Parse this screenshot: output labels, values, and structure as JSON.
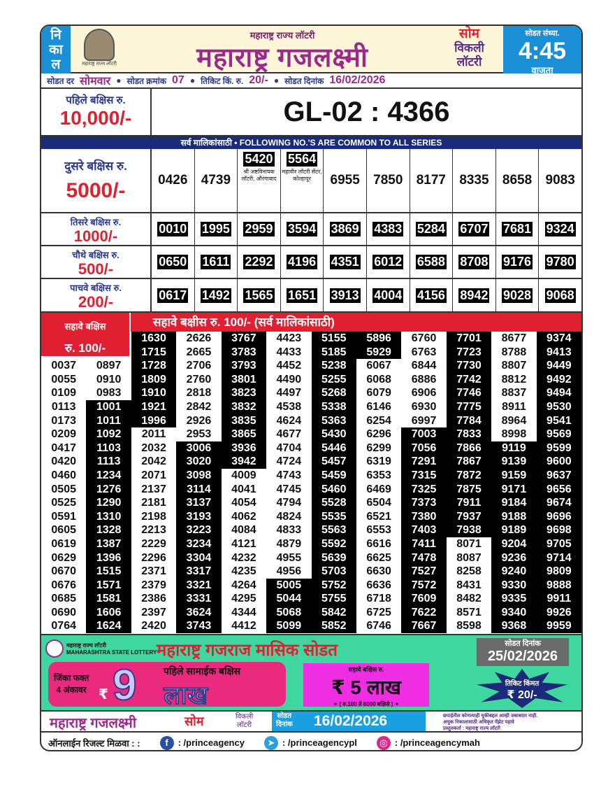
{
  "header": {
    "nikal": [
      "नि",
      "का",
      "ल"
    ],
    "logo_caption": "महाराष्ट्र राज्य लॉटरी",
    "subtitle": "महाराष्ट्र राज्य लॉटरी",
    "title": "महाराष्ट्र गजलक्ष्मी",
    "day_tag": "सोम",
    "weekly_line1": "विकली",
    "weekly_line2": "लॉटरी",
    "draw_time_label": "सोडत संध्या.",
    "draw_time": "4:45",
    "draw_time_suffix": "वाजता"
  },
  "info": {
    "day_label": "सोडत दर",
    "day": "सोमवार",
    "draw_no_label": "सोडत क्रमांक",
    "draw_no": "07",
    "price_label": "तिकिट किं. रु.",
    "price": "20/-",
    "date_label": "सोडत दिनांक",
    "date": "16/02/2026"
  },
  "first_prize": {
    "label": "पहिले बक्षिस रु.",
    "amount": "10,000/-",
    "number": "GL-02 : 4366"
  },
  "common_banner": "सर्व मालिकांसाठी  •  FOLLOWING NO.'S ARE COMMON TO ALL SERIES",
  "second_prize": {
    "label": "दुसरे बक्षिस रु.",
    "amount": "5000/-",
    "numbers": [
      {
        "n": "0426"
      },
      {
        "n": "4739"
      },
      {
        "n": "5420",
        "agent": "श्री अष्टविनायक लॉटरी, औरंगाबाद"
      },
      {
        "n": "5564",
        "agent": "महावीर लॉटरी सेंटर, कोल्हापूर"
      },
      {
        "n": "6955"
      },
      {
        "n": "7850"
      },
      {
        "n": "8177"
      },
      {
        "n": "8335"
      },
      {
        "n": "8658"
      },
      {
        "n": "9083"
      }
    ]
  },
  "third_prize": {
    "label": "तिसरे बक्षिस रु.",
    "amount": "1000/-",
    "numbers": [
      "0010",
      "1995",
      "2959",
      "3594",
      "3869",
      "4383",
      "5284",
      "6707",
      "7681",
      "9324"
    ]
  },
  "fourth_prize": {
    "label": "चौथे बक्षिस रु.",
    "amount": "500/-",
    "numbers": [
      "0650",
      "1611",
      "2292",
      "4196",
      "4351",
      "6012",
      "6588",
      "8708",
      "9176",
      "9780"
    ]
  },
  "fifth_prize": {
    "label": "पाचवे बक्षिस रु.",
    "amount": "200/-",
    "numbers": [
      "0617",
      "1492",
      "1565",
      "1651",
      "3913",
      "4004",
      "4156",
      "8942",
      "9028",
      "9068"
    ]
  },
  "sixth_prize": {
    "label_line1": "सहावे बक्षिस",
    "label_line2": "रु. 100/-",
    "banner": "सहावे बक्षीस रु. 100/-   (सर्व मालिकांसाठी)",
    "columns": [
      [
        "0037",
        "0055",
        "0109",
        "0113",
        "0173",
        "0209",
        "0417",
        "0420",
        "0460",
        "0505",
        "0525",
        "0591",
        "0605",
        "0619",
        "0629",
        "0670",
        "0676",
        "0685",
        "0690",
        "0764"
      ],
      [
        "0897",
        "0910",
        "0983",
        "1001",
        "1011",
        "1092",
        "1103",
        "1113",
        "1234",
        "1276",
        "1290",
        "1310",
        "1328",
        "1387",
        "1396",
        "1515",
        "1571",
        "1581",
        "1606",
        "1624"
      ],
      [
        "1630",
        "1715",
        "1728",
        "1809",
        "1910",
        "1921",
        "1996",
        "2011",
        "2032",
        "2042",
        "2071",
        "2137",
        "2181",
        "2198",
        "2213",
        "2229",
        "2296",
        "2371",
        "2379",
        "2386",
        "2397",
        "2420"
      ],
      [
        "2626",
        "2665",
        "2706",
        "2760",
        "2818",
        "2842",
        "2926",
        "2953",
        "3006",
        "3020",
        "3098",
        "3114",
        "3137",
        "3193",
        "3223",
        "3234",
        "3304",
        "3317",
        "3321",
        "3331",
        "3624",
        "3743"
      ],
      [
        "3767",
        "3783",
        "3793",
        "3801",
        "3823",
        "3832",
        "3835",
        "3865",
        "3936",
        "3942",
        "4009",
        "4041",
        "4054",
        "4062",
        "4084",
        "4121",
        "4232",
        "4235",
        "4264",
        "4295",
        "4344",
        "4412"
      ],
      [
        "4423",
        "4433",
        "4452",
        "4490",
        "4497",
        "4538",
        "4624",
        "4677",
        "4704",
        "4724",
        "4743",
        "4745",
        "4794",
        "4824",
        "4833",
        "4879",
        "4955",
        "4956",
        "5005",
        "5044",
        "5068",
        "5099"
      ],
      [
        "5155",
        "5185",
        "5238",
        "5255",
        "5268",
        "5338",
        "5363",
        "5430",
        "5446",
        "5457",
        "5459",
        "5460",
        "5528",
        "5535",
        "5563",
        "5592",
        "5639",
        "5703",
        "5752",
        "5755",
        "5842",
        "5852"
      ],
      [
        "5896",
        "5929",
        "6067",
        "6068",
        "6079",
        "6146",
        "6254",
        "6296",
        "6299",
        "6319",
        "6353",
        "6469",
        "6504",
        "6521",
        "6553",
        "6616",
        "6625",
        "6630",
        "6636",
        "6718",
        "6725",
        "6746"
      ],
      [
        "6760",
        "6763",
        "6844",
        "6886",
        "6906",
        "6930",
        "6997",
        "7003",
        "7056",
        "7291",
        "7315",
        "7325",
        "7373",
        "7380",
        "7403",
        "7411",
        "7478",
        "7527",
        "7572",
        "7609",
        "7622",
        "7667"
      ],
      [
        "7701",
        "7723",
        "7730",
        "7742",
        "7746",
        "7775",
        "7784",
        "7833",
        "7866",
        "7867",
        "7872",
        "7875",
        "7911",
        "7937",
        "7938",
        "8071",
        "8087",
        "8258",
        "8431",
        "8482",
        "8571",
        "8598"
      ],
      [
        "8677",
        "8788",
        "8807",
        "8812",
        "8837",
        "8911",
        "8964",
        "8998",
        "9119",
        "9139",
        "9159",
        "9171",
        "9184",
        "9188",
        "9189",
        "9204",
        "9236",
        "9240",
        "9330",
        "9335",
        "9340",
        "9368"
      ],
      [
        "9374",
        "9413",
        "9449",
        "9492",
        "9494",
        "9530",
        "9541",
        "9569",
        "9599",
        "9600",
        "9637",
        "9656",
        "9674",
        "9696",
        "9698",
        "9705",
        "9714",
        "9809",
        "9888",
        "9911",
        "9926",
        "9959"
      ]
    ]
  },
  "promo": {
    "logo_text_1": "महाराष्ट्र राज्य लॉटरी",
    "logo_text_2": "MAHARASHTRA STATE LOTTERY",
    "title": "महाराष्ट्र गजराज मासिक सोडत",
    "date_label": "सोडत दिनांक",
    "date": "25/02/2026",
    "win_line1": "जिंका फक्त",
    "win_line2": "4 अंकावर",
    "rupee": "₹",
    "big_digit": "9",
    "first_common": "पहिले सामाईक बक्षिस",
    "lakh": "लाख",
    "sixth_label": "सहावे बक्षिस रु.",
    "sixth_amount": "₹ 5 लाख",
    "sixth_note": "✶ ( रु.100 ते 6000 बक्षिसे ) ✶",
    "ticket_label": "तिकिट किंमत",
    "ticket_price": "₹ 20/-"
  },
  "footer": {
    "title": "महाराष्ट्र गजलक्ष्मी",
    "day": "सोम",
    "weekly_line1": "विकली",
    "weekly_line2": "लॉटरी",
    "date_label_1": "सोडत",
    "date_label_2": "दिनांक",
    "date": "16/02/2026",
    "disclaimer_1": "छपाईतील कोणत्याही चुकीबद्दल आम्ही जबाबदार नाही.",
    "disclaimer_2": "अचुक निकालासाठी अधिकृत गॅझेट पहावे",
    "disclaimer_3": "प्रस्तुतकर्ता : महाराष्ट्र राज्य लॉटरी"
  },
  "social": {
    "label": "ऑनलाईन रिजल्ट मिळवा : :",
    "facebook": ": /princeagency",
    "telegram": ": /princeagencypl",
    "instagram": ": /princeagencymah"
  },
  "colors": {
    "blue": "#1a8fd6",
    "magenta": "#9b2a8c",
    "red": "#e02030",
    "navy": "#1c2a7a",
    "promo_green": "#3fd6a0"
  }
}
